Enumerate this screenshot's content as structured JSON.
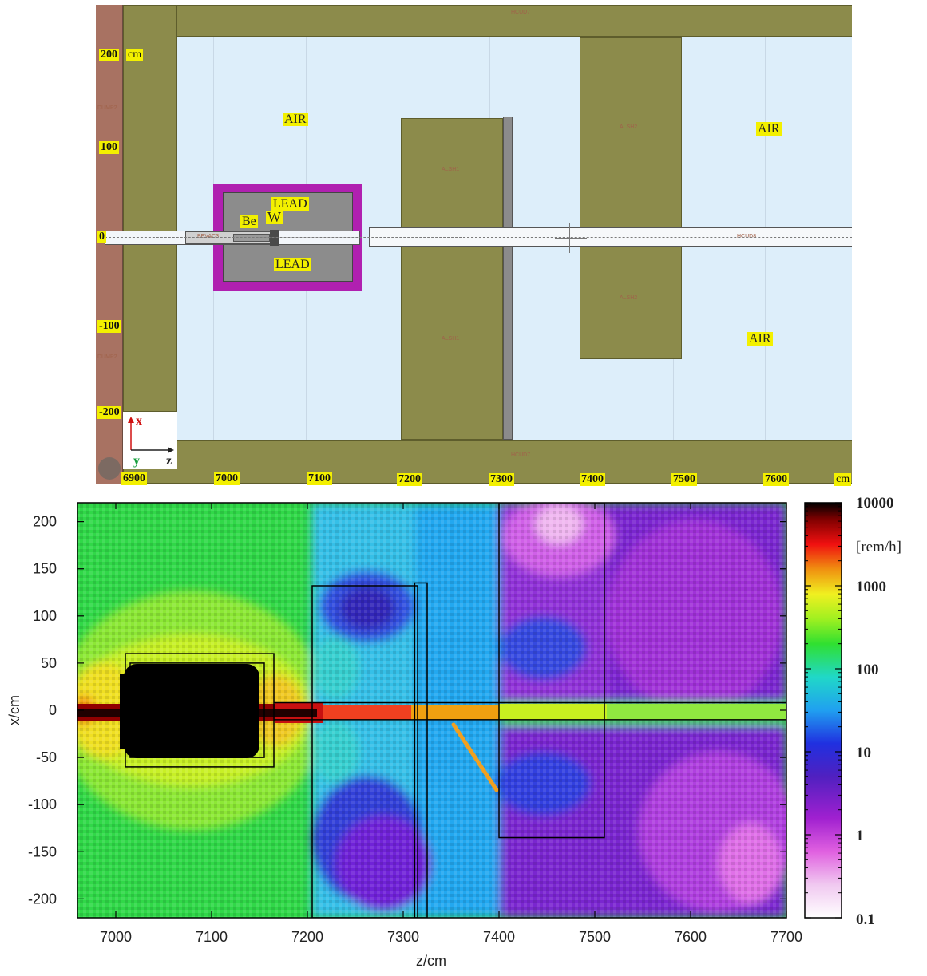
{
  "geometry": {
    "y_ticks": [
      "200",
      "100",
      "0",
      "-100",
      "-200"
    ],
    "y_unit": "cm",
    "x_ticks": [
      "6900",
      "7000",
      "7100",
      "7200",
      "7300",
      "7400",
      "7500",
      "7600"
    ],
    "x_unit": "cm",
    "materials": {
      "air_left": "AIR",
      "air_right_top": "AIR",
      "air_right_bottom": "AIR",
      "lead_top": "LEAD",
      "lead_bottom": "LEAD",
      "be": "Be",
      "w": "W"
    },
    "region_names": {
      "hcud_top": "HCUD7",
      "hcud_bottom": "HCUD7",
      "dump_upper": "DUMP2",
      "dump_lower": "DUMP2",
      "alsh1_top": "ALSH1",
      "alsh1_bottom": "ALSH1",
      "alsh2_top": "ALSH2",
      "alsh2_bottom": "ALSH2",
      "bevac": "BEVAC3",
      "hcud_pipe": "HCUD8"
    },
    "axes_icon": {
      "x": "x",
      "y": "y",
      "z": "z"
    },
    "colors": {
      "air": "#ddeefa",
      "olive": "#8c8b4b",
      "brick": "#a87262",
      "lead": "#8c8c8c",
      "magenta": "#b020b0"
    }
  },
  "chart_data": {
    "type": "heatmap",
    "xlabel": "z/cm",
    "ylabel": "x/cm",
    "xlim": [
      6960,
      7700
    ],
    "ylim": [
      -220,
      220
    ],
    "x_ticks": [
      7000,
      7100,
      7200,
      7300,
      7400,
      7500,
      7600,
      7700
    ],
    "y_ticks": [
      200,
      150,
      100,
      50,
      0,
      -50,
      -100,
      -150,
      -200
    ],
    "colorbar": {
      "unit": "[rem/h]",
      "scale": "log",
      "range": [
        0.1,
        10000
      ],
      "ticks": [
        "10000",
        "1000",
        "100",
        "10",
        "1",
        "0.1"
      ]
    },
    "outlines": "geometry boundaries overlaid in black"
  }
}
